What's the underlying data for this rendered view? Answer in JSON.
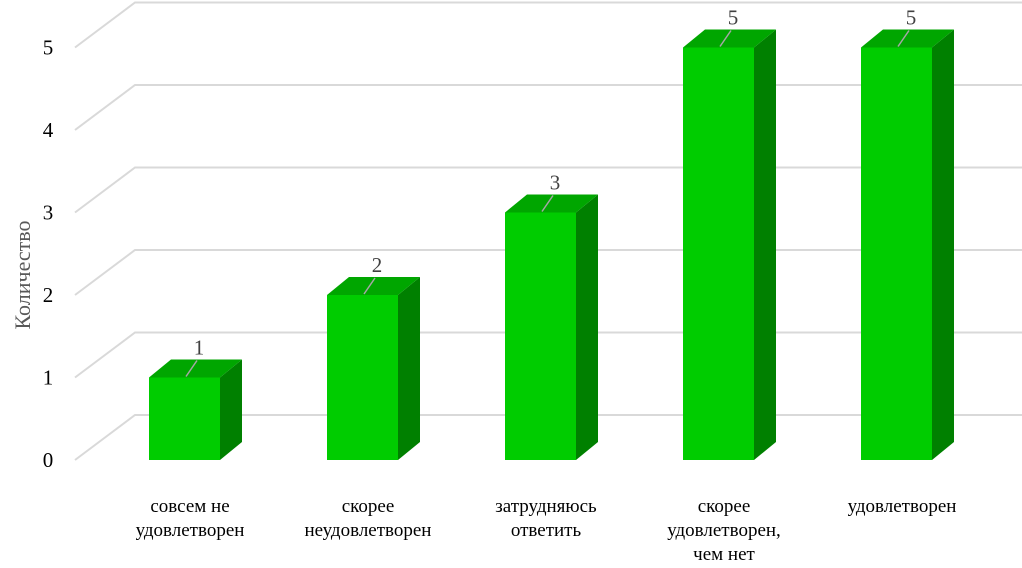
{
  "chart_data": {
    "type": "bar",
    "categories": [
      [
        "совсем не",
        "удовлетворен"
      ],
      [
        "скорее",
        "неудовлетворен"
      ],
      [
        "затрудняюсь",
        "ответить"
      ],
      [
        "скорее",
        "удовлетворен,",
        "чем нет"
      ],
      [
        "удовлетворен"
      ]
    ],
    "values": [
      1,
      2,
      3,
      5,
      5
    ],
    "title": "",
    "xlabel": "",
    "ylabel": "Количество",
    "ylim": [
      0,
      5
    ],
    "yticks": [
      0,
      1,
      2,
      3,
      4,
      5
    ],
    "grid": true,
    "legend": "none",
    "colors": {
      "bar_front": "#00CC00",
      "bar_side": "#008000",
      "bar_top": "#00A600",
      "grid": "#D9D9D9",
      "leader": "#A6A6A6"
    }
  }
}
